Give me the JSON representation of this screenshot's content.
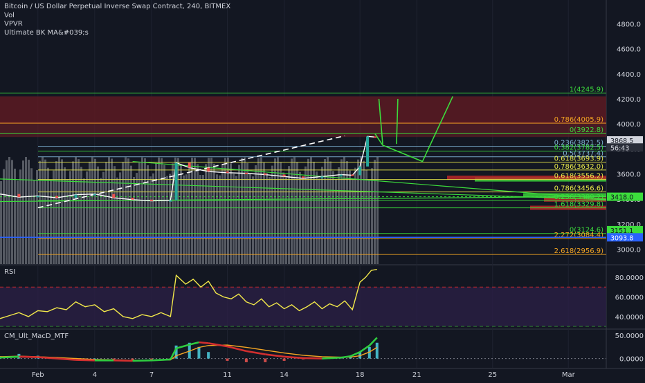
{
  "header": {
    "title": "Bitcoin / US Dollar Perpetual Inverse Swap Contract, 240, BITMEX",
    "indicators": [
      "Vol",
      "VPVR",
      "Ultimate BK MA&#039;s"
    ]
  },
  "colors": {
    "background": "#131722",
    "up": "#26a69a",
    "down": "#ef5350",
    "fib_green": "#3cdc3c",
    "fib_orange": "#f5a623",
    "fib_yellow": "#e8e84a",
    "rsi_line": "#f2e84a",
    "macd_up": "#2ecc40",
    "macd_down": "#d32f2f"
  },
  "chart_data": [
    {
      "type": "candlestick",
      "title": "Bitcoin / US Dollar Perpetual Inverse Swap Contract, 240, BITMEX",
      "y_ticks": [
        3000,
        3200,
        3400,
        3600,
        3800,
        4000,
        4200,
        4400,
        4600,
        4800
      ],
      "y_tick_labels": [
        "3000.0",
        "3200.0",
        "3400.0",
        "3600.0",
        "3800.0",
        "4000.0",
        "4200.0",
        "4400.0",
        "4600.0",
        "4800.0"
      ],
      "ylim": [
        2880,
        4990
      ],
      "x_tick_labels": [
        "Feb",
        "4",
        "7",
        "11",
        "14",
        "18",
        "21",
        "25",
        "Mar"
      ],
      "x_ticks": [
        1,
        4,
        7,
        11,
        14,
        18,
        21,
        25,
        29
      ],
      "xlim": [
        -1,
        31
      ],
      "price_path": [
        [
          -1,
          3440
        ],
        [
          0,
          3415
        ],
        [
          1,
          3425
        ],
        [
          2,
          3410
        ],
        [
          3,
          3435
        ],
        [
          4,
          3440
        ],
        [
          5,
          3410
        ],
        [
          6,
          3395
        ],
        [
          7,
          3385
        ],
        [
          8.0,
          3390
        ],
        [
          8.3,
          3690
        ],
        [
          9,
          3650
        ],
        [
          10,
          3620
        ],
        [
          11,
          3610
        ],
        [
          12,
          3605
        ],
        [
          13,
          3595
        ],
        [
          14,
          3580
        ],
        [
          15,
          3565
        ],
        [
          16,
          3580
        ],
        [
          17,
          3595
        ],
        [
          17.6,
          3590
        ],
        [
          18,
          3660
        ],
        [
          18.4,
          3900
        ],
        [
          18.8,
          3895
        ]
      ],
      "fib_levels": [
        {
          "label": "1(4245.9)",
          "value": 4245.9,
          "color": "#3cdc3c"
        },
        {
          "label": "0.786(4005.9)",
          "value": 4005.9,
          "color": "#f5a623"
        },
        {
          "label": "0(3922.8)",
          "value": 3922.8,
          "color": "#3cdc3c"
        },
        {
          "label": "0.236(3821.5)",
          "value": 3821.5,
          "color": "#7fb3d5"
        },
        {
          "label": "0.382(3782.5)",
          "value": 3782.5,
          "color": "#3cdc3c"
        },
        {
          "label": "0.5(3737.4)",
          "value": 3737.4,
          "color": "#7fb3d5"
        },
        {
          "label": "0.618(3693.9)",
          "value": 3693.9,
          "color": "#e8e84a"
        },
        {
          "label": "0.786(3632.0)",
          "value": 3632.0,
          "color": "#e8e84a"
        },
        {
          "label": "0.618(3556.2)",
          "value": 3556.2,
          "color": "#e8e84a"
        },
        {
          "label": "0.786(3456.6)",
          "value": 3456.6,
          "color": "#e8e84a"
        },
        {
          "label": "0.236(3389.2)",
          "value": 3389.2,
          "color": "#3cdc3c"
        },
        {
          "label": "1.618(3329.8)",
          "value": 3329.8,
          "color": "#3cdc3c"
        },
        {
          "label": "0(3124.6)",
          "value": 3124.6,
          "color": "#3cdc3c"
        },
        {
          "label": "2.272(3084.4)",
          "value": 3084.4,
          "color": "#f5a623"
        },
        {
          "label": "2.618(2956.9)",
          "value": 2956.9,
          "color": "#f5a623"
        }
      ],
      "price_badges": [
        {
          "label": "3868.5",
          "value": 3868.5,
          "bg": "#d1d4dc",
          "fg": "#131722"
        },
        {
          "label": "56:43",
          "value": 3812,
          "bg": "#2a2e39",
          "fg": "#d1d4dc"
        },
        {
          "label": "3418.0",
          "value": 3418.0,
          "bg": "#3cdc3c",
          "fg": "#131722"
        },
        {
          "label": "3151.1",
          "value": 3151.1,
          "bg": "#3cdc3c",
          "fg": "#131722"
        },
        {
          "label": "3093.8",
          "value": 3093.8,
          "bg": "#2962ff",
          "fg": "#ffffff"
        }
      ],
      "resistance_zone": [
        4005.9,
        4220
      ],
      "blue_horizontal": 3093.8,
      "projection_path": [
        [
          18.8,
          3920
        ],
        [
          19.2,
          3830
        ],
        [
          21.3,
          3700
        ],
        [
          22.9,
          4220
        ]
      ],
      "spikes": [
        [
          19.0,
          4200
        ],
        [
          19.2,
          3840
        ],
        [
          20.0,
          4200
        ]
      ]
    },
    {
      "type": "line",
      "title": "RSI",
      "y_ticks": [
        40,
        60,
        80
      ],
      "y_tick_labels": [
        "40.0000",
        "60.0000",
        "80.0000"
      ],
      "ylim": [
        28,
        92
      ],
      "overbought": 70,
      "oversold": 30,
      "x": [
        -1,
        -0.5,
        0,
        0.5,
        1,
        1.5,
        2,
        2.5,
        3,
        3.5,
        4,
        4.5,
        5,
        5.5,
        6,
        6.5,
        7,
        7.5,
        8,
        8.3,
        8.8,
        9.2,
        9.6,
        10,
        10.4,
        10.8,
        11.2,
        11.6,
        12,
        12.4,
        12.8,
        13.2,
        13.6,
        14,
        14.4,
        14.8,
        15.2,
        15.6,
        16,
        16.4,
        16.8,
        17.2,
        17.6,
        18,
        18.3,
        18.6,
        18.9
      ],
      "values": [
        38,
        41,
        44,
        40,
        46,
        45,
        49,
        47,
        55,
        50,
        52,
        45,
        48,
        40,
        38,
        42,
        40,
        44,
        40,
        82,
        73,
        78,
        70,
        76,
        64,
        60,
        58,
        63,
        55,
        52,
        58,
        50,
        54,
        48,
        52,
        46,
        50,
        55,
        48,
        53,
        50,
        56,
        47,
        75,
        80,
        87,
        88
      ]
    },
    {
      "type": "bar",
      "title": "CM_Ult_MacD_MTF",
      "y_ticks": [
        0,
        50
      ],
      "y_tick_labels": [
        "0.0000",
        "50.0000"
      ],
      "ylim": [
        -20,
        62
      ],
      "histogram": [
        [
          -1,
          5
        ],
        [
          0,
          10
        ],
        [
          1,
          6
        ],
        [
          2,
          3
        ],
        [
          3,
          1
        ],
        [
          4,
          0
        ],
        [
          5,
          -2
        ],
        [
          6,
          -4
        ],
        [
          7,
          -2
        ],
        [
          8,
          -1
        ],
        [
          8.3,
          28
        ],
        [
          9,
          34
        ],
        [
          9.5,
          25
        ],
        [
          10,
          14
        ],
        [
          11,
          -5
        ],
        [
          12,
          -8
        ],
        [
          13,
          -8
        ],
        [
          14,
          -5
        ],
        [
          15,
          -2
        ],
        [
          16,
          0
        ],
        [
          17,
          2
        ],
        [
          17.5,
          6
        ],
        [
          18,
          14
        ],
        [
          18.5,
          25
        ],
        [
          18.9,
          34
        ]
      ],
      "macd": [
        [
          -1,
          2
        ],
        [
          0,
          4
        ],
        [
          1,
          3
        ],
        [
          2,
          0
        ],
        [
          3,
          -3
        ],
        [
          4,
          -4
        ],
        [
          5,
          -4
        ],
        [
          6,
          -5
        ],
        [
          7,
          -4
        ],
        [
          8,
          -2
        ],
        [
          8.3,
          22
        ],
        [
          9,
          30
        ],
        [
          9.5,
          35
        ],
        [
          10,
          33
        ],
        [
          11,
          26
        ],
        [
          12,
          16
        ],
        [
          13,
          9
        ],
        [
          14,
          4
        ],
        [
          15,
          1
        ],
        [
          16,
          0
        ],
        [
          17,
          2
        ],
        [
          17.5,
          5
        ],
        [
          18,
          14
        ],
        [
          18.5,
          28
        ],
        [
          18.9,
          45
        ]
      ],
      "signal": [
        [
          -1,
          4
        ],
        [
          0,
          5
        ],
        [
          1,
          4
        ],
        [
          2,
          2
        ],
        [
          3,
          0
        ],
        [
          4,
          -2
        ],
        [
          5,
          -3
        ],
        [
          6,
          -4
        ],
        [
          7,
          -4
        ],
        [
          8,
          -3
        ],
        [
          8.3,
          6
        ],
        [
          9,
          16
        ],
        [
          9.5,
          24
        ],
        [
          10,
          28
        ],
        [
          11,
          29
        ],
        [
          12,
          24
        ],
        [
          13,
          18
        ],
        [
          14,
          12
        ],
        [
          15,
          7
        ],
        [
          16,
          4
        ],
        [
          17,
          3
        ],
        [
          17.5,
          3
        ],
        [
          18,
          6
        ],
        [
          18.5,
          14
        ],
        [
          18.9,
          24
        ]
      ]
    }
  ]
}
